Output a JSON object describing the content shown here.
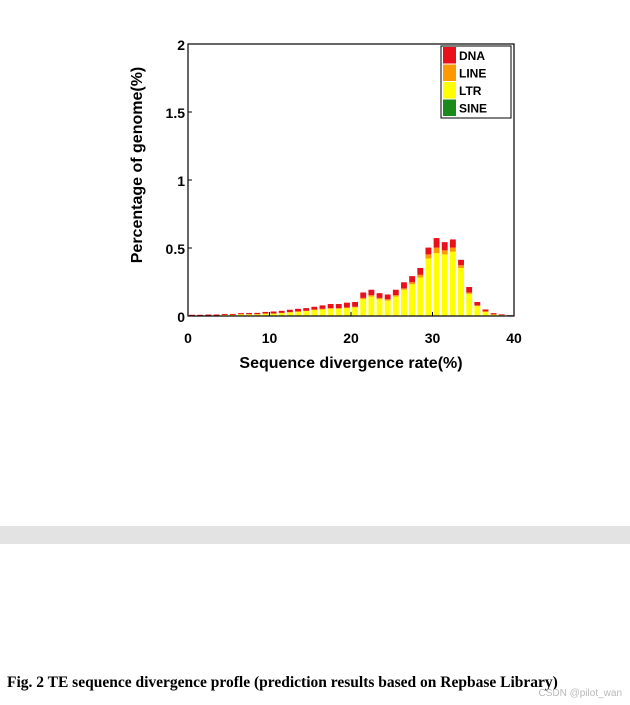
{
  "chart_data": {
    "type": "bar",
    "stacked": true,
    "xlabel": "Sequence divergence rate(%)",
    "ylabel": "Percentage of genome(%)",
    "xlim": [
      0,
      40
    ],
    "ylim": [
      0,
      2
    ],
    "x_ticks": [
      "0",
      "10",
      "20",
      "30",
      "40"
    ],
    "y_ticks": [
      "0",
      "0.5",
      "1",
      "1.5",
      "2"
    ],
    "grid": false,
    "legend_position": "top-right",
    "x": [
      0,
      1,
      2,
      3,
      4,
      5,
      6,
      7,
      8,
      9,
      10,
      11,
      12,
      13,
      14,
      15,
      16,
      17,
      18,
      19,
      20,
      21,
      22,
      23,
      24,
      25,
      26,
      27,
      28,
      29,
      30,
      31,
      32,
      33,
      34,
      35,
      36,
      37,
      38,
      39
    ],
    "series": [
      {
        "name": "SINE",
        "color": "#1a8a1a",
        "values": [
          0.003,
          0.003,
          0.003,
          0.003,
          0.003,
          0.003,
          0.003,
          0.003,
          0.003,
          0.003,
          0.003,
          0.003,
          0.003,
          0.003,
          0.003,
          0.003,
          0.003,
          0.003,
          0.003,
          0.003,
          0.003,
          0.003,
          0.003,
          0.003,
          0.003,
          0.003,
          0.003,
          0.003,
          0.003,
          0.003,
          0.003,
          0.003,
          0.003,
          0.003,
          0.003,
          0.003,
          0.003,
          0.003,
          0.003,
          0.003
        ]
      },
      {
        "name": "LTR",
        "color": "#ffff00",
        "values": [
          0.0,
          0.0,
          0.0,
          0.0,
          0.005,
          0.005,
          0.01,
          0.01,
          0.01,
          0.015,
          0.015,
          0.02,
          0.025,
          0.03,
          0.035,
          0.04,
          0.045,
          0.05,
          0.05,
          0.055,
          0.06,
          0.12,
          0.14,
          0.12,
          0.11,
          0.14,
          0.19,
          0.23,
          0.28,
          0.42,
          0.46,
          0.45,
          0.47,
          0.35,
          0.16,
          0.07,
          0.03,
          0.008,
          0.003,
          0.0
        ]
      },
      {
        "name": "LINE",
        "color": "#ff9900",
        "values": [
          0.0,
          0.0,
          0.0,
          0.0,
          0.0,
          0.0,
          0.0,
          0.0,
          0.0,
          0.0,
          0.0,
          0.0,
          0.0,
          0.0,
          0.0,
          0.005,
          0.005,
          0.005,
          0.005,
          0.005,
          0.005,
          0.01,
          0.01,
          0.01,
          0.01,
          0.01,
          0.01,
          0.015,
          0.02,
          0.03,
          0.04,
          0.03,
          0.03,
          0.02,
          0.01,
          0.005,
          0.0,
          0.0,
          0.0,
          0.0
        ]
      },
      {
        "name": "DNA",
        "color": "#e8101a",
        "values": [
          0.006,
          0.006,
          0.008,
          0.008,
          0.007,
          0.007,
          0.008,
          0.009,
          0.01,
          0.012,
          0.015,
          0.015,
          0.018,
          0.02,
          0.02,
          0.02,
          0.025,
          0.03,
          0.03,
          0.035,
          0.035,
          0.04,
          0.04,
          0.035,
          0.035,
          0.04,
          0.045,
          0.045,
          0.05,
          0.05,
          0.07,
          0.06,
          0.06,
          0.04,
          0.04,
          0.025,
          0.015,
          0.01,
          0.006,
          0.003
        ]
      }
    ]
  },
  "caption": "Fig. 2 TE sequence divergence profle (prediction results based on Repbase Library)",
  "watermark": "CSDN @pilot_wan"
}
